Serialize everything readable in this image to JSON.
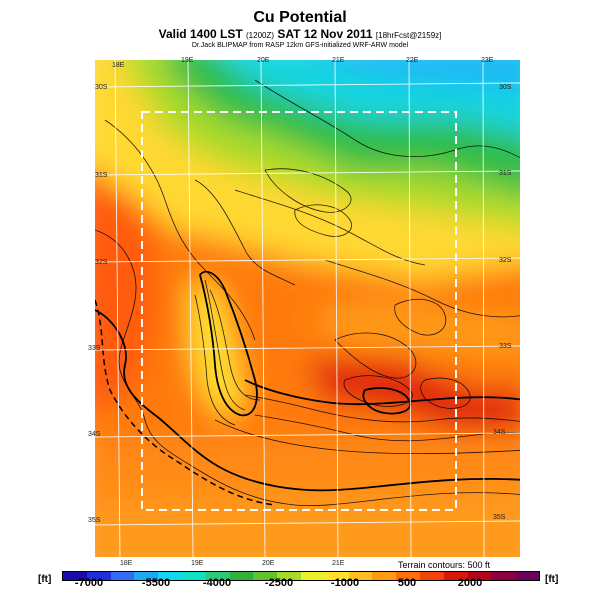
{
  "title": "Cu Potential",
  "valid": "Valid 1400 LST",
  "valid_small": "(1200Z)",
  "valid_date": "SAT 12 Nov 2011",
  "valid_suffix_small": "[18hrFcst@2159z]",
  "subtitle": "Dr.Jack BLIPMAP from RASP 12km GFS-initialized WRF-ARW model",
  "top_lon_labels": [
    "18E",
    "19E",
    "20E",
    "21E",
    "22E",
    "23E"
  ],
  "bottom_lon_labels": [
    "18E",
    "19E",
    "20E",
    "21E"
  ],
  "left_lat_labels": [
    "30S",
    "31S",
    "32S",
    "33S",
    "34S",
    "35S"
  ],
  "right_lat_labels": [
    "30S",
    "31S",
    "32S",
    "33S",
    "34S",
    "35S"
  ],
  "terrain_note": "Terrain contours: 500 ft",
  "units_left": "[ft]",
  "units_right": "[ft]",
  "colorbar_ticks": [
    "-7000",
    "-5500",
    "-4000",
    "-2500",
    "-1000",
    "500",
    "2000"
  ],
  "colorbar_colors": [
    "#1a0aa8",
    "#1f2ed6",
    "#2d6ef2",
    "#1fa6f5",
    "#14d6f0",
    "#11e0c4",
    "#2ec87a",
    "#2db33a",
    "#62c22c",
    "#a6d92b",
    "#e8f02a",
    "#ffe12e",
    "#ffbf1f",
    "#ff9a12",
    "#ff6f0c",
    "#f24307",
    "#d9160a",
    "#b2061c",
    "#8c0240",
    "#6e0258"
  ]
}
